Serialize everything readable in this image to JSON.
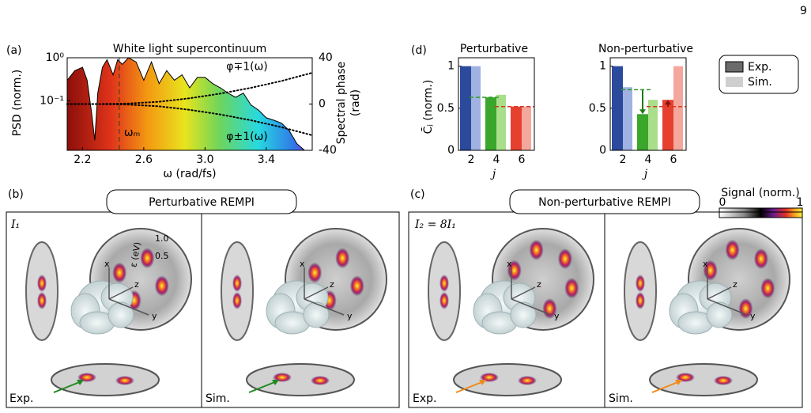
{
  "page_number": "9",
  "chart_data": [
    {
      "type": "area",
      "label": "(a)",
      "title": "White light supercontinuum",
      "x_label": "ω (rad/fs)",
      "y_label": "PSD (norm.)",
      "y2_label": [
        "Spectral phase",
        "(rad)"
      ],
      "x": [
        2.1,
        2.15,
        2.2,
        2.23,
        2.26,
        2.28,
        2.3,
        2.33,
        2.36,
        2.4,
        2.43,
        2.46,
        2.5,
        2.55,
        2.6,
        2.65,
        2.7,
        2.75,
        2.8,
        2.85,
        2.9,
        2.95,
        3.0,
        3.05,
        3.1,
        3.15,
        3.2,
        3.25,
        3.3,
        3.35,
        3.4,
        3.45,
        3.5,
        3.55,
        3.6,
        3.65
      ],
      "values": [
        0.3,
        0.5,
        0.6,
        0.3,
        0.05,
        0.012,
        0.15,
        0.6,
        0.9,
        0.4,
        0.9,
        0.7,
        1.0,
        0.8,
        0.3,
        0.8,
        0.25,
        0.5,
        0.3,
        0.4,
        0.2,
        0.35,
        0.35,
        0.25,
        0.2,
        0.15,
        0.12,
        0.15,
        0.08,
        0.06,
        0.04,
        0.035,
        0.03,
        0.02,
        0.01,
        0.007
      ],
      "ylog": true,
      "ylim": [
        0.007,
        1
      ],
      "yticks": [
        {
          "value": 1,
          "label": "10⁰"
        },
        {
          "value": 0.1,
          "label": "10⁻¹"
        }
      ],
      "y2lim": [
        -40,
        40
      ],
      "y2ticks": [
        40,
        0,
        -40
      ],
      "xlim": [
        2.1,
        3.7
      ],
      "xticks": [
        2.2,
        2.6,
        {
          "value": 3,
          "label": "3.0"
        },
        3.4
      ],
      "series": [
        {
          "name": "φ∓1(ω)",
          "axis": "y2",
          "color": "#000000",
          "x": [
            2.1,
            2.3,
            2.5,
            2.7,
            2.9,
            3.1,
            3.3,
            3.5,
            3.7
          ],
          "values": [
            0,
            0,
            0.5,
            2,
            5,
            9,
            14,
            20,
            27
          ]
        },
        {
          "name": "φ±1(ω)",
          "axis": "y2",
          "color": "#000000",
          "x": [
            2.1,
            2.3,
            2.5,
            2.7,
            2.9,
            3.1,
            3.3,
            3.5,
            3.7
          ],
          "values": [
            0,
            0,
            -0.5,
            -2,
            -5,
            -9,
            -14,
            -20,
            -27
          ]
        }
      ],
      "vline": {
        "value": 2.44,
        "label": "ωₘ"
      }
    },
    {
      "type": "bar",
      "label": "(d)",
      "title": "Perturbative",
      "y_label": "C̄ⱼ (norm.)",
      "x_label": "j",
      "categories": [
        "2",
        "4",
        "6"
      ],
      "ylim": [
        0,
        1.1
      ],
      "yticks": [
        0,
        0.5,
        1
      ],
      "series": [
        {
          "name": "Exp.",
          "colors": [
            "#2b4a9c",
            "#3aa62b",
            "#e5412e"
          ],
          "values": [
            1,
            0.63,
            0.52
          ]
        },
        {
          "name": "Sim.",
          "colors": [
            "#9fb2e2",
            "#a9df8a",
            "#f4a79d"
          ],
          "values": [
            1,
            0.66,
            0.52
          ]
        }
      ],
      "reference_lines": [
        {
          "value": 0.63,
          "color": "#2f9a22"
        },
        {
          "value": 0.52,
          "color": "#d33a2a"
        }
      ]
    },
    {
      "type": "bar",
      "title": "Non-perturbative",
      "x_label": "j",
      "categories": [
        "2",
        "4",
        "6"
      ],
      "ylim": [
        0,
        1.1
      ],
      "yticks": [
        0,
        0.5,
        1
      ],
      "series": [
        {
          "colors": [
            "#2b4a9c",
            "#3aa62b",
            "#e5412e"
          ],
          "values": [
            1,
            0.43,
            0.6
          ]
        },
        {
          "colors": [
            "#9fb2e2",
            "#a9df8a",
            "#f4a79d"
          ],
          "values": [
            0.75,
            0.6,
            1
          ]
        }
      ],
      "reference_lines": [
        {
          "value": 0.72,
          "color": "#2f9a22"
        },
        {
          "value": 0.52,
          "color": "#d33a2a"
        }
      ],
      "arrows": true
    }
  ],
  "panel_b": {
    "label": "(b)",
    "title": "Perturbative REMPI",
    "intensity": "I₁",
    "left": "Exp.",
    "right": "Sim.",
    "axes": {
      "x": "x",
      "y": "y",
      "z": "z",
      "energy": "ε (eV)",
      "ticks": [
        "1.0",
        "0.5"
      ]
    }
  },
  "panel_c": {
    "label": "(c)",
    "title": "Non-perturbative REMPI",
    "intensity": "I₂ = 8I₁",
    "left": "Exp.",
    "right": "Sim."
  },
  "colorbar": {
    "title": "Signal (norm.)",
    "min": 0,
    "max": 1
  }
}
